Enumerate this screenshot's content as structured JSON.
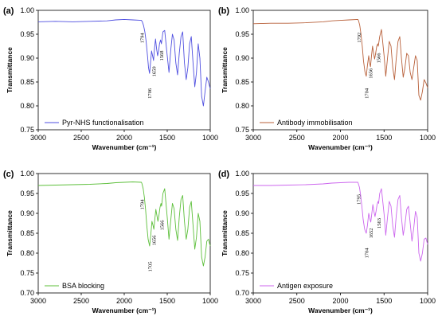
{
  "chart_data": [
    {
      "type": "line",
      "panel_label": "(a)",
      "xlabel": "Wavenumber (cm⁻¹)",
      "ylabel": "Transmittance",
      "xlim": [
        3000,
        1000
      ],
      "ylim": [
        0.75,
        1.0
      ],
      "xticks": [
        3000,
        2500,
        2000,
        1500,
        1000
      ],
      "yticks": [
        0.75,
        0.8,
        0.85,
        0.9,
        0.95,
        1.0
      ],
      "series": [
        {
          "name": "Pyr-NHS functionalisation",
          "color": "#4f4fe0",
          "x": [
            3000,
            2800,
            2600,
            2400,
            2200,
            2100,
            2000,
            1900,
            1800,
            1790,
            1775,
            1760,
            1745,
            1730,
            1718,
            1706,
            1694,
            1682,
            1670,
            1659,
            1648,
            1636,
            1624,
            1612,
            1600,
            1590,
            1578,
            1568,
            1550,
            1530,
            1500,
            1480,
            1460,
            1440,
            1420,
            1400,
            1380,
            1360,
            1340,
            1320,
            1300,
            1280,
            1260,
            1240,
            1220,
            1200,
            1180,
            1160,
            1140,
            1120,
            1100,
            1080,
            1060,
            1040,
            1020,
            1000
          ],
          "y": [
            0.976,
            0.977,
            0.976,
            0.977,
            0.978,
            0.98,
            0.981,
            0.98,
            0.979,
            0.976,
            0.968,
            0.955,
            0.935,
            0.905,
            0.88,
            0.868,
            0.89,
            0.915,
            0.905,
            0.895,
            0.92,
            0.94,
            0.92,
            0.905,
            0.915,
            0.93,
            0.938,
            0.93,
            0.955,
            0.958,
            0.905,
            0.87,
            0.915,
            0.95,
            0.938,
            0.89,
            0.865,
            0.91,
            0.945,
            0.955,
            0.89,
            0.855,
            0.88,
            0.93,
            0.945,
            0.89,
            0.84,
            0.87,
            0.93,
            0.9,
            0.82,
            0.8,
            0.83,
            0.86,
            0.85,
            0.836
          ]
        }
      ],
      "annotations": [
        "1794",
        "1659",
        "1568",
        "1706"
      ]
    },
    {
      "type": "line",
      "panel_label": "(b)",
      "xlabel": "Wavenumber (cm⁻¹)",
      "ylabel": "Transmittance",
      "xlim": [
        3000,
        1000
      ],
      "ylim": [
        0.75,
        1.0
      ],
      "xticks": [
        3000,
        2500,
        2000,
        1500,
        1000
      ],
      "yticks": [
        0.75,
        0.8,
        0.85,
        0.9,
        0.95,
        1.0
      ],
      "series": [
        {
          "name": "Antibody immobilisation",
          "color": "#b8603a",
          "x": [
            3000,
            2800,
            2600,
            2400,
            2200,
            2100,
            2000,
            1900,
            1800,
            1792,
            1778,
            1764,
            1750,
            1736,
            1720,
            1704,
            1690,
            1676,
            1666,
            1656,
            1644,
            1632,
            1620,
            1608,
            1596,
            1584,
            1572,
            1566,
            1550,
            1530,
            1500,
            1480,
            1460,
            1440,
            1420,
            1400,
            1380,
            1360,
            1340,
            1320,
            1300,
            1280,
            1260,
            1240,
            1220,
            1200,
            1180,
            1160,
            1140,
            1120,
            1100,
            1080,
            1060,
            1040,
            1020,
            1000
          ],
          "y": [
            0.972,
            0.973,
            0.973,
            0.974,
            0.976,
            0.978,
            0.979,
            0.98,
            0.981,
            0.978,
            0.968,
            0.95,
            0.925,
            0.895,
            0.872,
            0.862,
            0.885,
            0.905,
            0.89,
            0.882,
            0.905,
            0.925,
            0.91,
            0.898,
            0.91,
            0.925,
            0.93,
            0.925,
            0.945,
            0.96,
            0.905,
            0.862,
            0.9,
            0.935,
            0.925,
            0.88,
            0.855,
            0.9,
            0.935,
            0.945,
            0.9,
            0.86,
            0.88,
            0.91,
            0.905,
            0.87,
            0.855,
            0.88,
            0.905,
            0.895,
            0.822,
            0.812,
            0.83,
            0.855,
            0.848,
            0.838
          ]
        }
      ],
      "annotations": [
        "1792",
        "1656",
        "1566",
        "1704"
      ]
    },
    {
      "type": "line",
      "panel_label": "(c)",
      "xlabel": "Wavenumber (cm⁻¹)",
      "ylabel": "Transmittance",
      "xlim": [
        3000,
        1000
      ],
      "ylim": [
        0.7,
        1.0
      ],
      "xticks": [
        3000,
        2500,
        2000,
        1500,
        1000
      ],
      "yticks": [
        0.7,
        0.75,
        0.8,
        0.85,
        0.9,
        0.95,
        1.0
      ],
      "series": [
        {
          "name": "BSA blocking",
          "color": "#5cbf3a",
          "x": [
            3000,
            2800,
            2600,
            2400,
            2200,
            2100,
            2000,
            1900,
            1800,
            1794,
            1780,
            1766,
            1752,
            1738,
            1722,
            1705,
            1692,
            1678,
            1666,
            1656,
            1644,
            1632,
            1620,
            1608,
            1596,
            1584,
            1572,
            1566,
            1550,
            1530,
            1500,
            1480,
            1460,
            1440,
            1420,
            1400,
            1380,
            1360,
            1340,
            1320,
            1300,
            1280,
            1260,
            1240,
            1220,
            1200,
            1180,
            1160,
            1140,
            1120,
            1100,
            1080,
            1060,
            1040,
            1020,
            1000
          ],
          "y": [
            0.97,
            0.971,
            0.972,
            0.973,
            0.975,
            0.977,
            0.978,
            0.979,
            0.978,
            0.975,
            0.962,
            0.94,
            0.91,
            0.87,
            0.835,
            0.818,
            0.845,
            0.88,
            0.87,
            0.86,
            0.885,
            0.91,
            0.895,
            0.88,
            0.895,
            0.915,
            0.925,
            0.918,
            0.95,
            0.962,
            0.89,
            0.835,
            0.88,
            0.925,
            0.912,
            0.86,
            0.832,
            0.89,
            0.935,
            0.945,
            0.88,
            0.835,
            0.86,
            0.915,
            0.93,
            0.87,
            0.81,
            0.84,
            0.9,
            0.88,
            0.79,
            0.768,
            0.79,
            0.83,
            0.835,
            0.818
          ]
        }
      ],
      "annotations": [
        "1794",
        "1656",
        "1566",
        "1705"
      ]
    },
    {
      "type": "line",
      "panel_label": "(d)",
      "xlabel": "Wavenumber (cm⁻¹)",
      "ylabel": "Transmittance",
      "xlim": [
        3000,
        1000
      ],
      "ylim": [
        0.7,
        1.0
      ],
      "xticks": [
        3000,
        2500,
        2000,
        1500,
        1000
      ],
      "yticks": [
        0.7,
        0.75,
        0.8,
        0.85,
        0.9,
        0.95,
        1.0
      ],
      "series": [
        {
          "name": "Antigen exposure",
          "color": "#cc66ee",
          "x": [
            3000,
            2800,
            2600,
            2400,
            2200,
            2100,
            2000,
            1900,
            1800,
            1795,
            1782,
            1768,
            1754,
            1740,
            1722,
            1704,
            1690,
            1676,
            1664,
            1652,
            1640,
            1628,
            1616,
            1604,
            1592,
            1580,
            1568,
            1563,
            1550,
            1530,
            1500,
            1480,
            1460,
            1440,
            1420,
            1400,
            1380,
            1360,
            1340,
            1320,
            1300,
            1280,
            1260,
            1240,
            1220,
            1200,
            1180,
            1160,
            1140,
            1120,
            1100,
            1080,
            1060,
            1040,
            1020,
            1000
          ],
          "y": [
            0.97,
            0.97,
            0.971,
            0.972,
            0.974,
            0.976,
            0.977,
            0.978,
            0.978,
            0.975,
            0.965,
            0.945,
            0.918,
            0.885,
            0.86,
            0.85,
            0.87,
            0.9,
            0.888,
            0.878,
            0.9,
            0.922,
            0.905,
            0.892,
            0.905,
            0.922,
            0.93,
            0.925,
            0.95,
            0.962,
            0.898,
            0.845,
            0.89,
            0.93,
            0.918,
            0.868,
            0.84,
            0.895,
            0.935,
            0.945,
            0.89,
            0.845,
            0.872,
            0.91,
            0.918,
            0.875,
            0.83,
            0.862,
            0.905,
            0.89,
            0.8,
            0.78,
            0.8,
            0.835,
            0.838,
            0.822
          ]
        }
      ],
      "annotations": [
        "1795",
        "1652",
        "1563",
        "1704"
      ]
    }
  ]
}
